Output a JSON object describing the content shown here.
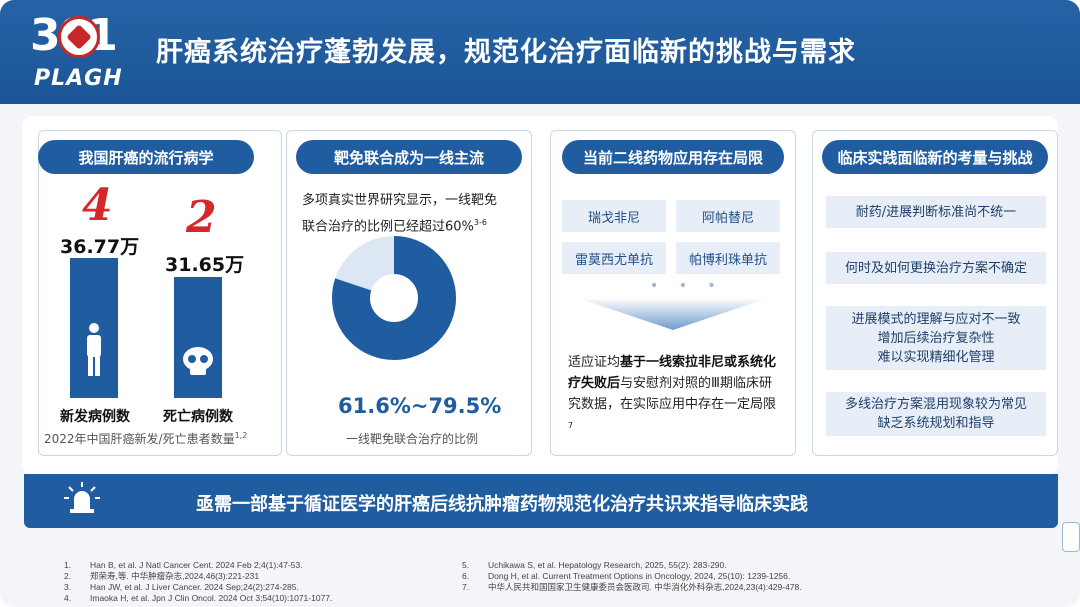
{
  "header": {
    "logo_number": "301",
    "logo_text": "PLAGH",
    "title": "肝癌系统治疗蓬勃发展，规范化治疗面临新的挑战与需求"
  },
  "card1": {
    "title": "我国肝癌的流行病学",
    "rank_new": "4",
    "rank_death": "2",
    "value_new": "36.77万",
    "value_death": "31.65万",
    "label_new": "新发病例数",
    "label_death": "死亡病例数",
    "note": "2022年中国肝癌新发/死亡患者数量",
    "note_sup": "1,2",
    "bar_heights": {
      "new": 36.77,
      "death": 31.65
    }
  },
  "card2": {
    "title": "靶免联合成为一线主流",
    "text_line1": "多项真实世界研究显示，一线靶免",
    "text_line2": "联合治疗的比例已经超过60%",
    "text_sup": "3-6",
    "donut_fraction": 0.8,
    "percent": "61.6%~79.5%",
    "caption": "一线靶免联合治疗的比例"
  },
  "card3": {
    "title": "当前二线药物应用存在局限",
    "drugs": [
      "瑞戈非尼",
      "阿帕替尼",
      "雷莫西尤单抗",
      "帕博利珠单抗"
    ],
    "dots": "• • •",
    "text_pre": "适应证均",
    "text_bold": "基于一线索拉非尼或系统化疗失败后",
    "text_post": "与安慰剂对照的Ⅲ期临床研究数据，在实际应用中存在一定局限",
    "text_sup": "7"
  },
  "card4": {
    "title": "临床实践面临新的考量与挑战",
    "items": [
      "耐药/进展判断标准尚不统一",
      "何时及如何更换治疗方案不确定",
      "进展模式的理解与应对不一致\n增加后续治疗复杂性\n难以实现精细化管理",
      "多线治疗方案混用现象较为常见\n缺乏系统规划和指导"
    ]
  },
  "banner": {
    "text": "亟需一部基于循证医学的肝癌后线抗肿瘤药物规范化治疗共识来指导临床实践"
  },
  "references": {
    "left": [
      {
        "num": "1.",
        "text": "Han B, et al. J Natl Cancer Cent. 2024 Feb 2;4(1):47-53."
      },
      {
        "num": "2.",
        "text": "郑荣寿,等. 中华肿瘤杂志,2024,46(3):221-231"
      },
      {
        "num": "3.",
        "text": "Han JW, et al. J Liver Cancer. 2024 Sep;24(2):274-285."
      },
      {
        "num": "4.",
        "text": "Imaoka H, et al. Jpn J Clin Oncol. 2024 Oct 3;54(10):1071-1077."
      }
    ],
    "right": [
      {
        "num": "5.",
        "text": "Uchikawa S, et al. Hepatology Research, 2025, 55(2): 283-290."
      },
      {
        "num": "6.",
        "text": "Dong H, et al. Current Treatment Options in Oncology, 2024, 25(10): 1239-1256."
      },
      {
        "num": "7.",
        "text": "中华人民共和国国家卫生健康委员会医政司. 中华消化外科杂志,2024,23(4):429-478."
      }
    ]
  },
  "colors": {
    "brand_blue": "#1f5da0",
    "accent_red": "#d62828",
    "light_blue": "#e7eef7"
  }
}
